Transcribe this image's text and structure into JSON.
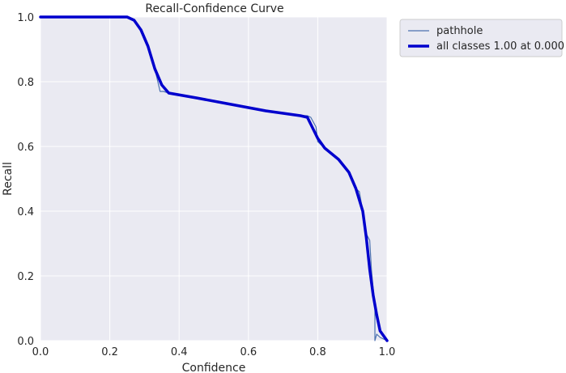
{
  "chart_data": {
    "type": "line",
    "title": "Recall-Confidence Curve",
    "xlabel": "Confidence",
    "ylabel": "Recall",
    "xlim": [
      0,
      1
    ],
    "ylim": [
      0,
      1
    ],
    "xticks": [
      "0.0",
      "0.2",
      "0.4",
      "0.6",
      "0.8",
      "1.0"
    ],
    "yticks": [
      "0.0",
      "0.2",
      "0.4",
      "0.6",
      "0.8",
      "1.0"
    ],
    "grid": true,
    "legend_position": "outside-top-right",
    "series": [
      {
        "name": "pathhole",
        "color": "#4c72b0",
        "style": "thin",
        "x": [
          0,
          0.25,
          0.27,
          0.29,
          0.31,
          0.33,
          0.345,
          0.355,
          0.37,
          0.45,
          0.55,
          0.65,
          0.75,
          0.77,
          0.78,
          0.795,
          0.8,
          0.82,
          0.86,
          0.89,
          0.91,
          0.92,
          0.93,
          0.94,
          0.95,
          0.955,
          0.96,
          0.965,
          0.965,
          0.97,
          0.98,
          1.0
        ],
        "y": [
          1.0,
          1.0,
          0.99,
          0.96,
          0.91,
          0.84,
          0.77,
          0.77,
          0.765,
          0.75,
          0.73,
          0.71,
          0.695,
          0.695,
          0.69,
          0.66,
          0.615,
          0.595,
          0.56,
          0.52,
          0.47,
          0.46,
          0.4,
          0.33,
          0.31,
          0.22,
          0.16,
          0.1,
          0.0,
          0.02,
          0.01,
          0.0
        ]
      },
      {
        "name": "all classes 1.00 at 0.000",
        "color": "#0000cd",
        "style": "thick",
        "x": [
          0,
          0.25,
          0.27,
          0.29,
          0.31,
          0.33,
          0.35,
          0.37,
          0.45,
          0.55,
          0.65,
          0.75,
          0.77,
          0.8,
          0.82,
          0.86,
          0.89,
          0.91,
          0.93,
          0.94,
          0.95,
          0.96,
          0.97,
          0.98,
          1.0
        ],
        "y": [
          1.0,
          1.0,
          0.99,
          0.96,
          0.91,
          0.84,
          0.79,
          0.765,
          0.75,
          0.73,
          0.71,
          0.695,
          0.69,
          0.625,
          0.595,
          0.56,
          0.52,
          0.47,
          0.4,
          0.32,
          0.22,
          0.14,
          0.08,
          0.03,
          0.0
        ]
      }
    ]
  }
}
